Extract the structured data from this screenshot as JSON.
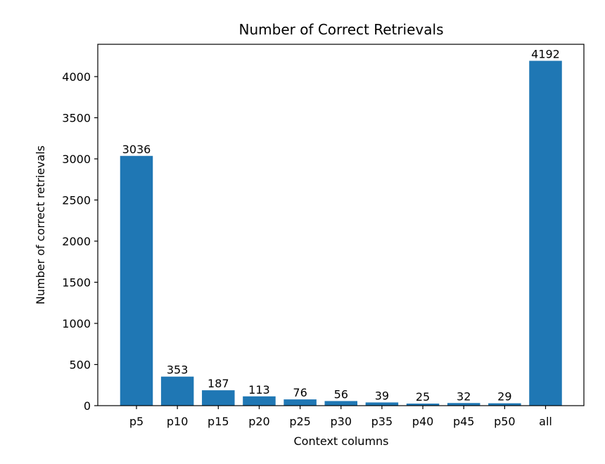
{
  "chart_data": {
    "type": "bar",
    "title": "Number of Correct Retrievals",
    "xlabel": "Context columns",
    "ylabel": "Number of correct retrievals",
    "categories": [
      "p5",
      "p10",
      "p15",
      "p20",
      "p25",
      "p30",
      "p35",
      "p40",
      "p45",
      "p50",
      "all"
    ],
    "values": [
      3036,
      353,
      187,
      113,
      76,
      56,
      39,
      25,
      32,
      29,
      4192
    ],
    "data_labels": [
      "3036",
      "353",
      "187",
      "113",
      "76",
      "56",
      "39",
      "25",
      "32",
      "29",
      "4192"
    ],
    "ylim": [
      0,
      4400
    ],
    "yticks": [
      0,
      500,
      1000,
      1500,
      2000,
      2500,
      3000,
      3500,
      4000
    ],
    "ytick_labels": [
      "0",
      "500",
      "1000",
      "1500",
      "2000",
      "2500",
      "3000",
      "3500",
      "4000"
    ],
    "grid": false,
    "legend": "none",
    "bar_color": "#1f77b4"
  }
}
